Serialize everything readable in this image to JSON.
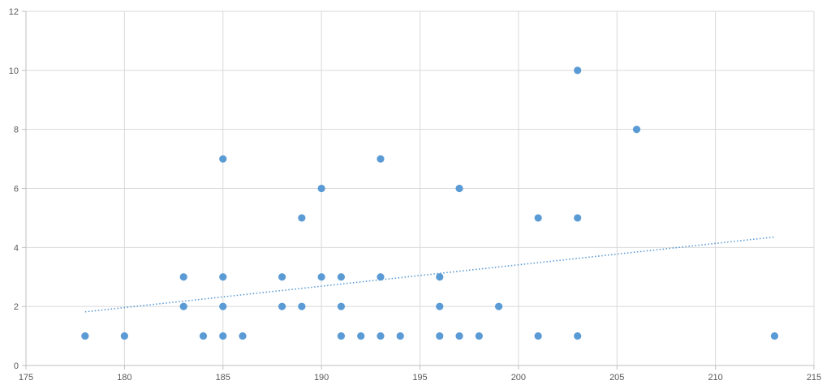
{
  "chart_data": {
    "type": "scatter",
    "title": "",
    "xlabel": "",
    "ylabel": "",
    "xlim": [
      175,
      215
    ],
    "ylim": [
      0,
      12
    ],
    "x_ticks": [
      175,
      180,
      185,
      190,
      195,
      200,
      205,
      210,
      215
    ],
    "y_ticks": [
      0,
      2,
      4,
      6,
      8,
      10,
      12
    ],
    "grid": true,
    "legend": "none",
    "marker_color": "#5b9bd5",
    "trend_color": "#5b9bd5",
    "series": [
      {
        "points": [
          [
            178,
            1
          ],
          [
            180,
            1
          ],
          [
            183,
            3
          ],
          [
            183,
            2
          ],
          [
            184,
            1
          ],
          [
            185,
            7
          ],
          [
            185,
            3
          ],
          [
            185,
            2
          ],
          [
            185,
            1
          ],
          [
            186,
            1
          ],
          [
            188,
            3
          ],
          [
            188,
            2
          ],
          [
            189,
            5
          ],
          [
            189,
            2
          ],
          [
            190,
            6
          ],
          [
            190,
            3
          ],
          [
            191,
            3
          ],
          [
            191,
            2
          ],
          [
            191,
            1
          ],
          [
            192,
            1
          ],
          [
            193,
            7
          ],
          [
            193,
            3
          ],
          [
            193,
            1
          ],
          [
            194,
            1
          ],
          [
            196,
            3
          ],
          [
            196,
            2
          ],
          [
            196,
            1
          ],
          [
            197,
            6
          ],
          [
            197,
            1
          ],
          [
            198,
            1
          ],
          [
            199,
            2
          ],
          [
            201,
            5
          ],
          [
            201,
            1
          ],
          [
            203,
            10
          ],
          [
            203,
            5
          ],
          [
            203,
            1
          ],
          [
            206,
            8
          ],
          [
            213,
            1
          ]
        ]
      }
    ],
    "trendline": {
      "type": "linear",
      "x_start": 178,
      "x_end": 213
    }
  }
}
